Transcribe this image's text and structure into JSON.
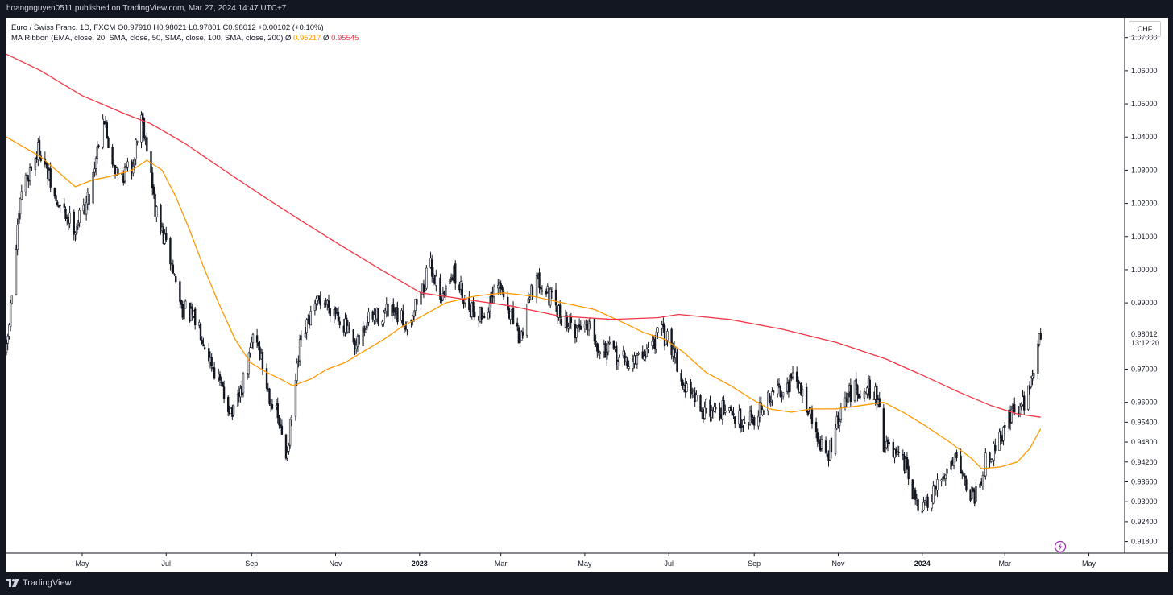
{
  "header": {
    "published_line": "hoangnguyen0511 published on TradingView.com, Mar 27, 2024 14:47 UTC+7"
  },
  "legend": {
    "symbol_line": "Euro / Swiss Franc, 1D, FXCM  O0.97910  H0.98021  L0.97801  C0.98012  +0.00102 (+0.10%)",
    "ribbon_prefix": "MA Ribbon (EMA, close, 20, SMA, close, 50, SMA, close, 100, SMA, close, 200)  Ø ",
    "ma100_value": "0.95217",
    "ribbon_sep": "  Ø ",
    "ma200_value": "0.95545"
  },
  "currency_button": "CHF",
  "price_label": {
    "price": "0.98012",
    "countdown": "13:12:20"
  },
  "footer": {
    "brand": "TradingView"
  },
  "colors": {
    "ma100": "#ff9800",
    "ma200": "#f23645",
    "candles": "#131722",
    "background": "#ffffff",
    "frame": "#131722"
  },
  "chart_data": {
    "type": "candlestick",
    "title": "Euro / Swiss Franc, 1D, FXCM",
    "y_axis": {
      "range": [
        0.9145,
        1.076
      ],
      "ticks": [
        "1.07000",
        "1.06000",
        "1.05000",
        "1.04000",
        "1.03000",
        "1.02000",
        "1.01000",
        "1.00000",
        "0.99000",
        "0.97000",
        "0.96000",
        "0.95400",
        "0.94800",
        "0.94200",
        "0.93600",
        "0.93000",
        "0.92400",
        "0.91800"
      ],
      "tick_values": [
        1.07,
        1.06,
        1.05,
        1.04,
        1.03,
        1.02,
        1.01,
        1.0,
        0.99,
        0.97,
        0.96,
        0.954,
        0.948,
        0.942,
        0.936,
        0.93,
        0.924,
        0.918
      ]
    },
    "x_axis": {
      "range": [
        "2022-03-07",
        "2024-05-27"
      ],
      "ticks": [
        {
          "label": "May",
          "date": "2022-05-01",
          "bold": false
        },
        {
          "label": "Jul",
          "date": "2022-07-01",
          "bold": false
        },
        {
          "label": "Sep",
          "date": "2022-09-01",
          "bold": false
        },
        {
          "label": "Nov",
          "date": "2022-11-01",
          "bold": false
        },
        {
          "label": "2023",
          "date": "2023-01-01",
          "bold": true
        },
        {
          "label": "Mar",
          "date": "2023-03-01",
          "bold": false
        },
        {
          "label": "May",
          "date": "2023-05-01",
          "bold": false
        },
        {
          "label": "Jul",
          "date": "2023-07-01",
          "bold": false
        },
        {
          "label": "Sep",
          "date": "2023-09-01",
          "bold": false
        },
        {
          "label": "Nov",
          "date": "2023-11-01",
          "bold": false
        },
        {
          "label": "2024",
          "date": "2024-01-01",
          "bold": true
        },
        {
          "label": "Mar",
          "date": "2024-03-01",
          "bold": false
        },
        {
          "label": "May",
          "date": "2024-05-01",
          "bold": false
        }
      ]
    },
    "price_path": {
      "description": "approximate close anchors read from the chart (date, close)",
      "points": [
        [
          "2022-03-07",
          0.975
        ],
        [
          "2022-03-18",
          1.024
        ],
        [
          "2022-03-31",
          1.037
        ],
        [
          "2022-04-12",
          1.02
        ],
        [
          "2022-04-26",
          1.013
        ],
        [
          "2022-05-06",
          1.022
        ],
        [
          "2022-05-16",
          1.047
        ],
        [
          "2022-05-20",
          1.038
        ],
        [
          "2022-05-27",
          1.028
        ],
        [
          "2022-06-06",
          1.031
        ],
        [
          "2022-06-13",
          1.047
        ],
        [
          "2022-06-17",
          1.038
        ],
        [
          "2022-06-23",
          1.018
        ],
        [
          "2022-07-04",
          1.003
        ],
        [
          "2022-07-12",
          0.989
        ],
        [
          "2022-07-25",
          0.983
        ],
        [
          "2022-08-03",
          0.972
        ],
        [
          "2022-08-12",
          0.962
        ],
        [
          "2022-08-19",
          0.956
        ],
        [
          "2022-08-29",
          0.97
        ],
        [
          "2022-09-03",
          0.983
        ],
        [
          "2022-09-12",
          0.965
        ],
        [
          "2022-09-20",
          0.955
        ],
        [
          "2022-09-26",
          0.944
        ],
        [
          "2022-09-29",
          0.952
        ],
        [
          "2022-10-06",
          0.976
        ],
        [
          "2022-10-13",
          0.985
        ],
        [
          "2022-10-21",
          0.991
        ],
        [
          "2022-11-01",
          0.988
        ],
        [
          "2022-11-09",
          0.982
        ],
        [
          "2022-11-15",
          0.975
        ],
        [
          "2022-11-25",
          0.985
        ],
        [
          "2022-12-09",
          0.987
        ],
        [
          "2022-12-23",
          0.984
        ],
        [
          "2023-01-03",
          0.994
        ],
        [
          "2023-01-09",
          1.001
        ],
        [
          "2023-01-18",
          0.991
        ],
        [
          "2023-01-24",
          1.0
        ],
        [
          "2023-02-06",
          0.989
        ],
        [
          "2023-02-16",
          0.986
        ],
        [
          "2023-02-28",
          0.995
        ],
        [
          "2023-03-06",
          0.989
        ],
        [
          "2023-03-15",
          0.978
        ],
        [
          "2023-03-22",
          0.994
        ],
        [
          "2023-03-30",
          0.997
        ],
        [
          "2023-04-11",
          0.987
        ],
        [
          "2023-04-24",
          0.982
        ],
        [
          "2023-05-05",
          0.985
        ],
        [
          "2023-05-11",
          0.977
        ],
        [
          "2023-05-24",
          0.974
        ],
        [
          "2023-05-31",
          0.972
        ],
        [
          "2023-06-10",
          0.973
        ],
        [
          "2023-06-19",
          0.978
        ],
        [
          "2023-06-26",
          0.981
        ],
        [
          "2023-07-05",
          0.976
        ],
        [
          "2023-07-10",
          0.966
        ],
        [
          "2023-07-25",
          0.958
        ],
        [
          "2023-08-08",
          0.958
        ],
        [
          "2023-08-21",
          0.955
        ],
        [
          "2023-09-01",
          0.956
        ],
        [
          "2023-09-09",
          0.959
        ],
        [
          "2023-09-18",
          0.964
        ],
        [
          "2023-09-30",
          0.967
        ],
        [
          "2023-10-09",
          0.96
        ],
        [
          "2023-10-16",
          0.95
        ],
        [
          "2023-10-24",
          0.943
        ],
        [
          "2023-10-31",
          0.953
        ],
        [
          "2023-11-09",
          0.963
        ],
        [
          "2023-11-22",
          0.965
        ],
        [
          "2023-11-30",
          0.961
        ],
        [
          "2023-12-04",
          0.948
        ],
        [
          "2023-12-13",
          0.943
        ],
        [
          "2023-12-21",
          0.94
        ],
        [
          "2023-12-28",
          0.928
        ],
        [
          "2024-01-05",
          0.929
        ],
        [
          "2024-01-12",
          0.934
        ],
        [
          "2024-01-22",
          0.943
        ],
        [
          "2024-01-27",
          0.945
        ],
        [
          "2024-02-02",
          0.934
        ],
        [
          "2024-02-08",
          0.932
        ],
        [
          "2024-02-17",
          0.943
        ],
        [
          "2024-02-27",
          0.95
        ],
        [
          "2024-03-07",
          0.958
        ],
        [
          "2024-03-14",
          0.959
        ],
        [
          "2024-03-22",
          0.97
        ],
        [
          "2024-03-27",
          0.98
        ]
      ]
    },
    "series": [
      {
        "name": "MA 100",
        "color": "#ff9800",
        "points": [
          [
            "2022-03-07",
            1.04
          ],
          [
            "2022-04-01",
            1.034
          ],
          [
            "2022-04-26",
            1.025
          ],
          [
            "2022-05-08",
            1.027
          ],
          [
            "2022-05-20",
            1.028
          ],
          [
            "2022-06-06",
            1.03
          ],
          [
            "2022-06-17",
            1.033
          ],
          [
            "2022-06-28",
            1.03
          ],
          [
            "2022-07-08",
            1.022
          ],
          [
            "2022-07-18",
            1.012
          ],
          [
            "2022-07-28",
            1.001
          ],
          [
            "2022-08-08",
            0.99
          ],
          [
            "2022-08-20",
            0.979
          ],
          [
            "2022-08-31",
            0.972
          ],
          [
            "2022-09-12",
            0.969
          ],
          [
            "2022-09-22",
            0.967
          ],
          [
            "2022-10-01",
            0.965
          ],
          [
            "2022-10-14",
            0.967
          ],
          [
            "2022-10-26",
            0.97
          ],
          [
            "2022-11-08",
            0.972
          ],
          [
            "2022-11-20",
            0.975
          ],
          [
            "2022-12-06",
            0.979
          ],
          [
            "2022-12-20",
            0.983
          ],
          [
            "2023-01-03",
            0.986
          ],
          [
            "2023-01-20",
            0.99
          ],
          [
            "2023-02-10",
            0.992
          ],
          [
            "2023-03-03",
            0.993
          ],
          [
            "2023-03-24",
            0.992
          ],
          [
            "2023-04-15",
            0.99
          ],
          [
            "2023-05-08",
            0.988
          ],
          [
            "2023-05-29",
            0.984
          ],
          [
            "2023-06-13",
            0.981
          ],
          [
            "2023-06-28",
            0.979
          ],
          [
            "2023-07-12",
            0.975
          ],
          [
            "2023-07-28",
            0.969
          ],
          [
            "2023-08-15",
            0.965
          ],
          [
            "2023-08-30",
            0.961
          ],
          [
            "2023-09-12",
            0.958
          ],
          [
            "2023-09-28",
            0.957
          ],
          [
            "2023-10-12",
            0.958
          ],
          [
            "2023-10-30",
            0.958
          ],
          [
            "2023-11-17",
            0.959
          ],
          [
            "2023-12-04",
            0.96
          ],
          [
            "2023-12-18",
            0.957
          ],
          [
            "2024-01-03",
            0.953
          ],
          [
            "2024-01-21",
            0.948
          ],
          [
            "2024-02-06",
            0.943
          ],
          [
            "2024-02-13",
            0.94
          ],
          [
            "2024-02-27",
            0.9405
          ],
          [
            "2024-03-10",
            0.942
          ],
          [
            "2024-03-19",
            0.946
          ],
          [
            "2024-03-27",
            0.952
          ]
        ]
      },
      {
        "name": "MA 200",
        "color": "#f23645",
        "points": [
          [
            "2022-03-07",
            1.065
          ],
          [
            "2022-04-01",
            1.06
          ],
          [
            "2022-05-01",
            1.0525
          ],
          [
            "2022-06-01",
            1.047
          ],
          [
            "2022-06-20",
            1.044
          ],
          [
            "2022-07-15",
            1.038
          ],
          [
            "2022-08-12",
            1.03
          ],
          [
            "2022-09-10",
            1.022
          ],
          [
            "2022-10-10",
            1.014
          ],
          [
            "2022-11-06",
            1.007
          ],
          [
            "2022-12-04",
            1.0
          ],
          [
            "2023-01-02",
            0.993
          ],
          [
            "2023-02-04",
            0.991
          ],
          [
            "2023-03-09",
            0.989
          ],
          [
            "2023-04-13",
            0.986
          ],
          [
            "2023-05-21",
            0.985
          ],
          [
            "2023-06-23",
            0.9855
          ],
          [
            "2023-07-08",
            0.9865
          ],
          [
            "2023-08-14",
            0.985
          ],
          [
            "2023-09-22",
            0.982
          ],
          [
            "2023-10-31",
            0.978
          ],
          [
            "2023-12-06",
            0.973
          ],
          [
            "2024-01-02",
            0.968
          ],
          [
            "2024-01-28",
            0.963
          ],
          [
            "2024-02-20",
            0.959
          ],
          [
            "2024-03-10",
            0.9565
          ],
          [
            "2024-03-27",
            0.9555
          ]
        ]
      }
    ],
    "last_price": 0.98012
  }
}
